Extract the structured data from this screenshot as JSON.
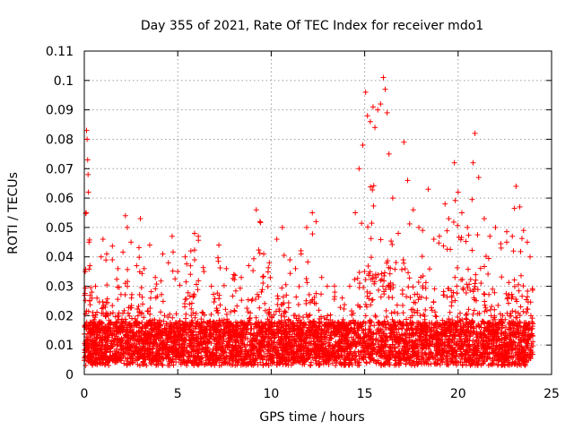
{
  "chart_data": {
    "type": "scatter",
    "title": "Day 355 of 2021, Rate Of TEC Index for receiver mdo1",
    "xlabel": "GPS time / hours",
    "ylabel": "ROTI / TECUs",
    "xlim": [
      0,
      25
    ],
    "ylim": [
      0,
      0.11
    ],
    "xticks": [
      "0",
      "5",
      "10",
      "15",
      "20",
      "25"
    ],
    "yticks": [
      "0",
      "0.01",
      "0.02",
      "0.03",
      "0.04",
      "0.05",
      "0.06",
      "0.07",
      "0.08",
      "0.09",
      "0.1",
      "0.11"
    ],
    "grid": true,
    "marker": "+",
    "color": "#ff0000",
    "series": [
      {
        "name": "",
        "points": [
          [
            0.05,
            0.035
          ],
          [
            0.1,
            0.055
          ],
          [
            0.12,
            0.083
          ],
          [
            0.15,
            0.08
          ],
          [
            0.18,
            0.073
          ],
          [
            0.2,
            0.068
          ],
          [
            0.22,
            0.062
          ],
          [
            0.25,
            0.045
          ],
          [
            0.3,
            0.037
          ],
          [
            0.4,
            0.028
          ],
          [
            0.6,
            0.03
          ],
          [
            0.9,
            0.04
          ],
          [
            1.0,
            0.046
          ],
          [
            1.2,
            0.041
          ],
          [
            1.5,
            0.039
          ],
          [
            1.8,
            0.036
          ],
          [
            2.2,
            0.054
          ],
          [
            2.3,
            0.05
          ],
          [
            2.5,
            0.045
          ],
          [
            2.8,
            0.037
          ],
          [
            3.0,
            0.053
          ],
          [
            3.2,
            0.036
          ],
          [
            3.5,
            0.044
          ],
          [
            3.8,
            0.033
          ],
          [
            4.2,
            0.041
          ],
          [
            4.5,
            0.038
          ],
          [
            4.7,
            0.047
          ],
          [
            5.0,
            0.035
          ],
          [
            5.4,
            0.04
          ],
          [
            5.7,
            0.042
          ],
          [
            5.9,
            0.048
          ],
          [
            6.1,
            0.047
          ],
          [
            6.4,
            0.035
          ],
          [
            6.8,
            0.03
          ],
          [
            7.2,
            0.044
          ],
          [
            7.6,
            0.036
          ],
          [
            8.0,
            0.034
          ],
          [
            8.4,
            0.033
          ],
          [
            8.8,
            0.037
          ],
          [
            9.2,
            0.056
          ],
          [
            9.4,
            0.052
          ],
          [
            9.6,
            0.041
          ],
          [
            9.9,
            0.038
          ],
          [
            10.3,
            0.046
          ],
          [
            10.6,
            0.05
          ],
          [
            11.0,
            0.039
          ],
          [
            11.3,
            0.036
          ],
          [
            11.6,
            0.041
          ],
          [
            11.9,
            0.05
          ],
          [
            12.2,
            0.055
          ],
          [
            12.4,
            0.052
          ],
          [
            12.7,
            0.033
          ],
          [
            13.0,
            0.03
          ],
          [
            13.4,
            0.028
          ],
          [
            13.8,
            0.026
          ],
          [
            14.2,
            0.03
          ],
          [
            14.5,
            0.055
          ],
          [
            14.7,
            0.07
          ],
          [
            14.9,
            0.078
          ],
          [
            15.05,
            0.096
          ],
          [
            15.15,
            0.088
          ],
          [
            15.3,
            0.086
          ],
          [
            15.45,
            0.091
          ],
          [
            15.55,
            0.084
          ],
          [
            15.7,
            0.09
          ],
          [
            15.85,
            0.092
          ],
          [
            16.0,
            0.101
          ],
          [
            16.1,
            0.097
          ],
          [
            16.2,
            0.089
          ],
          [
            16.3,
            0.075
          ],
          [
            16.5,
            0.06
          ],
          [
            16.8,
            0.048
          ],
          [
            17.1,
            0.079
          ],
          [
            17.3,
            0.066
          ],
          [
            17.6,
            0.056
          ],
          [
            17.9,
            0.05
          ],
          [
            18.1,
            0.049
          ],
          [
            18.4,
            0.063
          ],
          [
            18.7,
            0.046
          ],
          [
            19.0,
            0.047
          ],
          [
            19.3,
            0.058
          ],
          [
            19.5,
            0.053
          ],
          [
            19.8,
            0.072
          ],
          [
            20.0,
            0.062
          ],
          [
            20.2,
            0.055
          ],
          [
            20.5,
            0.05
          ],
          [
            20.8,
            0.072
          ],
          [
            20.9,
            0.082
          ],
          [
            21.1,
            0.067
          ],
          [
            21.4,
            0.053
          ],
          [
            21.7,
            0.047
          ],
          [
            22.0,
            0.05
          ],
          [
            22.3,
            0.043
          ],
          [
            22.6,
            0.045
          ],
          [
            22.9,
            0.047
          ],
          [
            23.1,
            0.064
          ],
          [
            23.3,
            0.057
          ],
          [
            23.5,
            0.049
          ],
          [
            23.7,
            0.045
          ],
          [
            23.85,
            0.04
          ]
        ]
      }
    ]
  }
}
